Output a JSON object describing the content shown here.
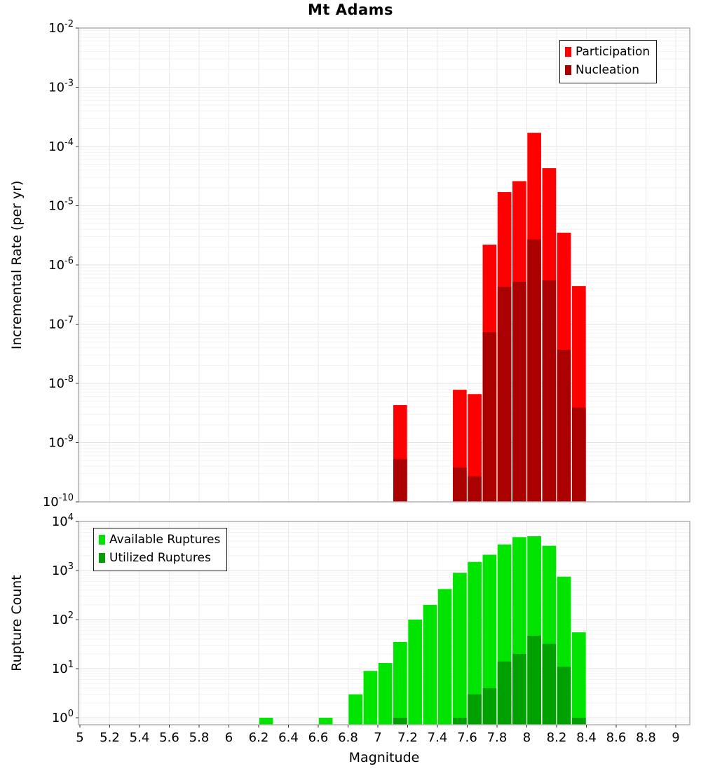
{
  "title": "Mt Adams",
  "xaxis": {
    "label": "Magnitude",
    "tick_values": [
      5,
      5.2,
      5.4,
      5.6,
      5.8,
      6,
      6.2,
      6.4,
      6.6,
      6.8,
      7,
      7.2,
      7.4,
      7.6,
      7.8,
      8,
      8.2,
      8.4,
      8.6,
      8.8,
      9
    ],
    "tick_labels": [
      "5",
      "5.2",
      "5.4",
      "5.6",
      "5.8",
      "6",
      "6.2",
      "6.4",
      "6.6",
      "6.8",
      "7",
      "7.2",
      "7.4",
      "7.6",
      "7.8",
      "8",
      "8.2",
      "8.4",
      "8.6",
      "8.8",
      "9"
    ]
  },
  "chart_data": [
    {
      "type": "bar",
      "title": "Mt Adams",
      "ylabel": "Incremental Rate (per yr)",
      "xlabel": "Magnitude",
      "yscale": "log",
      "xlim": [
        5,
        9.1
      ],
      "ylim": [
        1e-10,
        0.01
      ],
      "grid": true,
      "bin_width": 0.1,
      "bin_start_mags": [
        7.1,
        7.5,
        7.6,
        7.7,
        7.8,
        7.9,
        8.0,
        8.1,
        8.2,
        8.3
      ],
      "series": [
        {
          "name": "Participation",
          "color": "#ff0000",
          "values": [
            4.3e-09,
            7.8e-09,
            6.6e-09,
            2.2e-06,
            1.7e-05,
            2.6e-05,
            0.00017,
            4.3e-05,
            3.5e-06,
            4.4e-07
          ]
        },
        {
          "name": "Nucleation",
          "color": "#aa0000",
          "values": [
            5.3e-10,
            3.8e-10,
            2.7e-10,
            7.3e-08,
            4.3e-07,
            5.2e-07,
            2.7e-06,
            5.5e-07,
            3.7e-08,
            3.9e-09
          ]
        }
      ],
      "ytick_exponents": [
        -2,
        -3,
        -4,
        -5,
        -6,
        -7,
        -8,
        -9,
        -10
      ],
      "legend_position": "top-right"
    },
    {
      "type": "bar",
      "ylabel": "Rupture Count",
      "xlabel": "Magnitude",
      "yscale": "log",
      "xlim": [
        5,
        9.1
      ],
      "ylim": [
        1,
        10000
      ],
      "grid": true,
      "bin_width": 0.1,
      "bin_start_mags": [
        6.2,
        6.6,
        6.8,
        6.9,
        7.0,
        7.1,
        7.2,
        7.3,
        7.4,
        7.5,
        7.6,
        7.7,
        7.8,
        7.9,
        8.0,
        8.1,
        8.2,
        8.3
      ],
      "series": [
        {
          "name": "Available Ruptures",
          "color": "#00e400",
          "values": [
            1,
            1,
            3,
            9,
            13,
            35,
            100,
            200,
            420,
            900,
            1500,
            2100,
            3400,
            4800,
            5000,
            3200,
            750,
            55
          ]
        },
        {
          "name": "Utilized Ruptures",
          "color": "#00a000",
          "values": [
            0,
            0,
            0,
            0,
            0,
            1,
            0,
            0,
            0,
            1,
            3,
            4,
            14,
            20,
            47,
            32,
            11,
            1
          ]
        }
      ],
      "ytick_exponents": [
        4,
        3,
        2,
        1,
        0
      ],
      "legend_position": "top-left"
    }
  ]
}
